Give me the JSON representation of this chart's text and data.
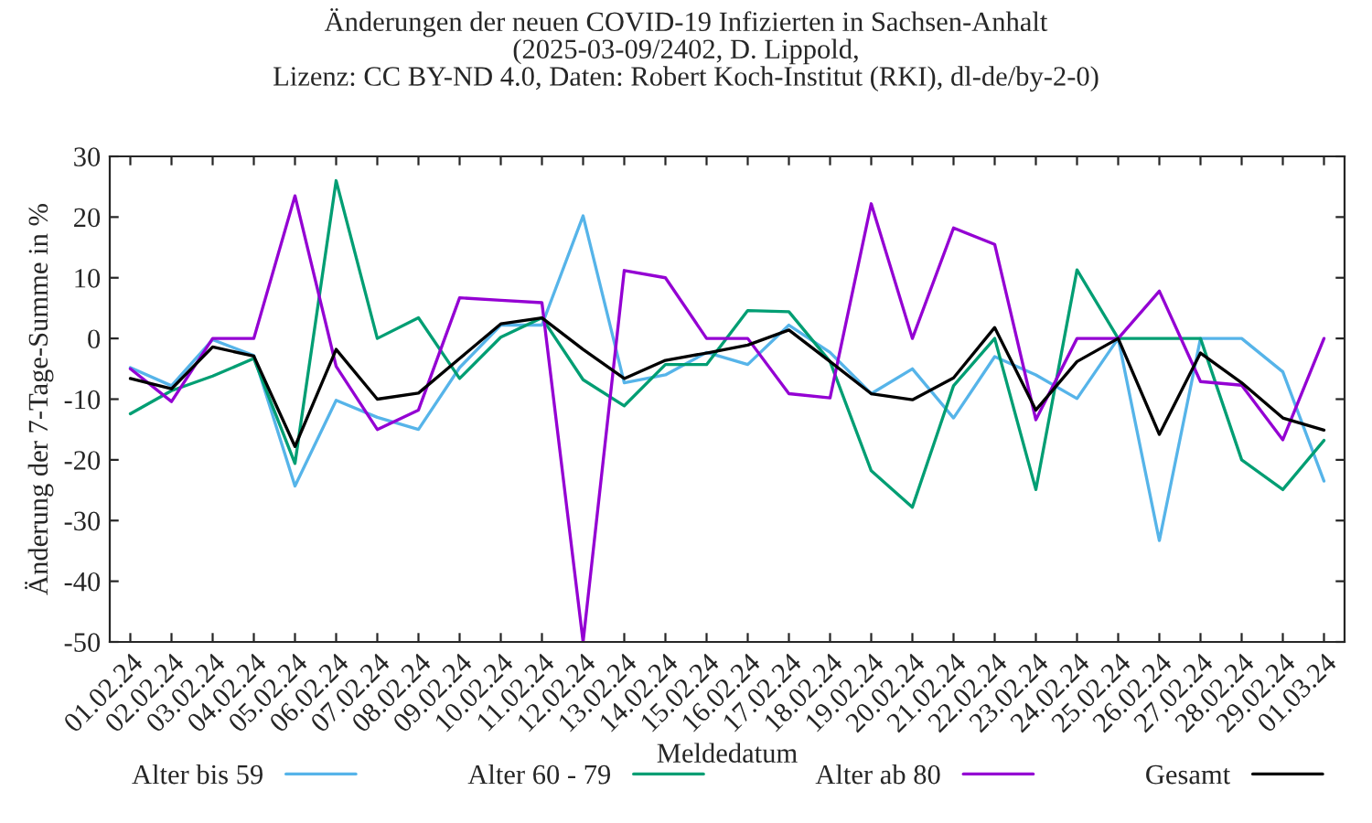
{
  "chart_data": {
    "type": "line",
    "title": "Änderungen der neuen COVID-19 Infizierten in Sachsen-Anhalt\n(2025-03-09/2402, D. Lippold,\nLizenz: CC BY-ND 4.0, Daten: Robert Koch-Institut (RKI), dl-de/by-2-0)",
    "xlabel": "Meldedatum",
    "ylabel": "Änderung der 7-Tage-Summe in %",
    "categories": [
      "01.02.24",
      "02.02.24",
      "03.02.24",
      "04.02.24",
      "05.02.24",
      "06.02.24",
      "07.02.24",
      "08.02.24",
      "09.02.24",
      "10.02.24",
      "11.02.24",
      "12.02.24",
      "13.02.24",
      "14.02.24",
      "15.02.24",
      "16.02.24",
      "17.02.24",
      "18.02.24",
      "19.02.24",
      "20.02.24",
      "21.02.24",
      "22.02.24",
      "23.02.24",
      "24.02.24",
      "25.02.24",
      "26.02.24",
      "27.02.24",
      "28.02.24",
      "29.02.24",
      "01.03.24"
    ],
    "series": [
      {
        "name": "Alter bis 59",
        "color": "#56b4e9",
        "values": [
          -4.8,
          -7.8,
          -0.2,
          -2.8,
          -24.3,
          -10.2,
          -13,
          -15,
          -4.8,
          2.2,
          2.2,
          20.2,
          -7.3,
          -6,
          -2.3,
          -4.3,
          2.2,
          -2.3,
          -9.1,
          -5,
          -13.1,
          -3,
          -6,
          -9.9,
          0,
          -33.3,
          0,
          0,
          -5.5,
          -23.5
        ]
      },
      {
        "name": "Alter 60 - 79",
        "color": "#009e73",
        "values": [
          -12.4,
          -8.6,
          -6.2,
          -3.3,
          -20.6,
          26,
          0,
          3.4,
          -6.6,
          0.2,
          3.4,
          -6.8,
          -11.1,
          -4.3,
          -4.3,
          4.6,
          4.4,
          -3.8,
          -21.8,
          -27.8,
          -7.8,
          0,
          -24.9,
          11.3,
          0,
          0,
          0,
          -20,
          -24.9,
          -16.8
        ]
      },
      {
        "name": "Alter ab 80",
        "color": "#9400d3",
        "values": [
          -5,
          -10.4,
          0,
          0,
          23.5,
          -4.6,
          -15,
          -11.8,
          6.7,
          6.3,
          5.9,
          -50,
          11.2,
          10,
          0,
          0,
          -9.1,
          -9.8,
          22.2,
          0,
          18.2,
          15.5,
          -13.4,
          0,
          0,
          7.8,
          -7.1,
          -7.7,
          -16.7,
          0
        ]
      },
      {
        "name": "Gesamt",
        "color": "#000000",
        "values": [
          -6.6,
          -8.3,
          -1.4,
          -2.9,
          -17.8,
          -1.8,
          -10,
          -9,
          -3.3,
          2.4,
          3.4,
          -1.8,
          -6.6,
          -3.6,
          -2.4,
          -1.1,
          1.4,
          -3.8,
          -9.1,
          -10.1,
          -6.5,
          1.8,
          -11.8,
          -3.8,
          0,
          -15.8,
          -2.4,
          -7.3,
          -13.1,
          -15.1
        ]
      }
    ],
    "ylim": [
      -50,
      30
    ],
    "yticks": [
      -50,
      -40,
      -30,
      -20,
      -10,
      0,
      10,
      20,
      30
    ],
    "legend": "bottom",
    "line_style": "solid",
    "marker": "none"
  }
}
